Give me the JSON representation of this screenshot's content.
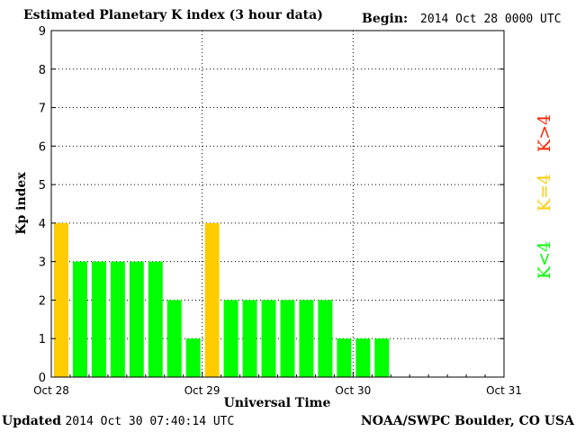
{
  "header": {
    "title": "Estimated Planetary K index (3 hour data)",
    "begin_label": "Begin:",
    "begin_value": "2014 Oct 28 0000 UTC"
  },
  "footer": {
    "updated_label": "Updated",
    "updated_value": "2014 Oct 30 07:40:14 UTC",
    "credit": "NOAA/SWPC Boulder, CO USA"
  },
  "legend": [
    {
      "label": "K<4",
      "color": "#00ff00"
    },
    {
      "label": "K=4",
      "color": "#ffcc00"
    },
    {
      "label": "K>4",
      "color": "#ff2200"
    }
  ],
  "chart_data": {
    "type": "bar",
    "title": "Estimated Planetary K index (3 hour data)",
    "xlabel": "Universal Time",
    "ylabel": "Kp index",
    "ylim": [
      0,
      9
    ],
    "yticks": [
      0,
      1,
      2,
      3,
      4,
      5,
      6,
      7,
      8,
      9
    ],
    "x_range": [
      "2014-10-28 00:00",
      "2014-10-31 00:00"
    ],
    "x_ticks": [
      {
        "label": "Oct 28",
        "day": 28
      },
      {
        "label": "Oct 29",
        "day": 29
      },
      {
        "label": "Oct 30",
        "day": 30
      },
      {
        "label": "Oct 31",
        "day": 31
      }
    ],
    "interval_hours": 3,
    "grid": true,
    "colors": {
      "low": "#00ff00",
      "equal": "#ffcc00",
      "high": "#ff2200"
    },
    "bars": [
      {
        "time": "Oct 28 00:00",
        "kp": 4
      },
      {
        "time": "Oct 28 03:00",
        "kp": 3
      },
      {
        "time": "Oct 28 06:00",
        "kp": 3
      },
      {
        "time": "Oct 28 09:00",
        "kp": 3
      },
      {
        "time": "Oct 28 12:00",
        "kp": 3
      },
      {
        "time": "Oct 28 15:00",
        "kp": 3
      },
      {
        "time": "Oct 28 18:00",
        "kp": 2
      },
      {
        "time": "Oct 28 21:00",
        "kp": 1
      },
      {
        "time": "Oct 29 00:00",
        "kp": 4
      },
      {
        "time": "Oct 29 03:00",
        "kp": 2
      },
      {
        "time": "Oct 29 06:00",
        "kp": 2
      },
      {
        "time": "Oct 29 09:00",
        "kp": 2
      },
      {
        "time": "Oct 29 12:00",
        "kp": 2
      },
      {
        "time": "Oct 29 15:00",
        "kp": 2
      },
      {
        "time": "Oct 29 18:00",
        "kp": 2
      },
      {
        "time": "Oct 29 21:00",
        "kp": 1
      },
      {
        "time": "Oct 30 00:00",
        "kp": 1
      },
      {
        "time": "Oct 30 03:00",
        "kp": 1
      }
    ]
  }
}
